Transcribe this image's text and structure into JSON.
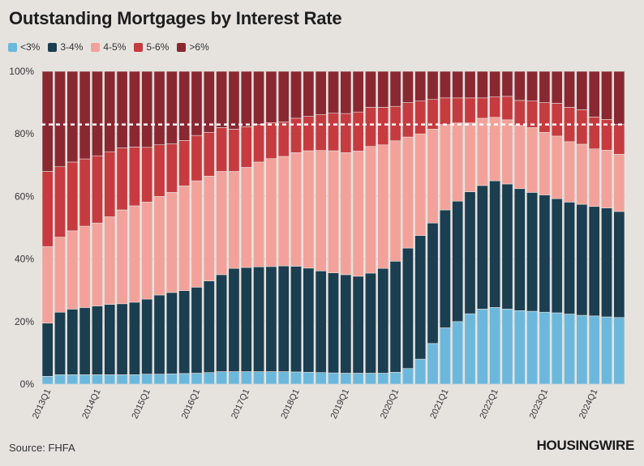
{
  "title": "Outstanding Mortgages by Interest Rate",
  "source": "Source: FHFA",
  "brand": "HOUSINGWIRE",
  "chart_data": {
    "type": "bar",
    "stacked": true,
    "normalized": true,
    "title": "Outstanding Mortgages by Interest Rate",
    "ylim": [
      0,
      100
    ],
    "yticks": [
      "0%",
      "20%",
      "40%",
      "60%",
      "80%",
      "100%"
    ],
    "reference_line": 83,
    "categories": [
      "2013Q1",
      "2013Q2",
      "2013Q3",
      "2013Q4",
      "2014Q1",
      "2014Q2",
      "2014Q3",
      "2014Q4",
      "2015Q1",
      "2015Q2",
      "2015Q3",
      "2015Q4",
      "2016Q1",
      "2016Q2",
      "2016Q3",
      "2016Q4",
      "2017Q1",
      "2017Q2",
      "2017Q3",
      "2017Q4",
      "2018Q1",
      "2018Q2",
      "2018Q3",
      "2018Q4",
      "2019Q1",
      "2019Q2",
      "2019Q3",
      "2019Q4",
      "2020Q1",
      "2020Q2",
      "2020Q3",
      "2020Q4",
      "2021Q1",
      "2021Q2",
      "2021Q3",
      "2021Q4",
      "2022Q1",
      "2022Q2",
      "2022Q3",
      "2022Q4",
      "2023Q1",
      "2023Q2",
      "2023Q3",
      "2023Q4",
      "2024Q1",
      "2024Q2",
      "2024Q3"
    ],
    "x_tick_labels": [
      "2013Q1",
      "2014Q1",
      "2015Q1",
      "2016Q1",
      "2017Q1",
      "2018Q1",
      "2019Q1",
      "2020Q1",
      "2021Q1",
      "2022Q1",
      "2023Q1",
      "2024Q1"
    ],
    "series": [
      {
        "name": "<3%",
        "color": "#6cb8dc",
        "values": [
          2.5,
          3,
          3,
          3,
          3,
          3,
          3,
          3,
          3.2,
          3.2,
          3.3,
          3.4,
          3.5,
          3.7,
          4,
          4,
          4,
          4,
          4,
          4,
          3.9,
          3.8,
          3.7,
          3.6,
          3.5,
          3.5,
          3.5,
          3.5,
          3.8,
          5,
          8,
          13,
          18,
          20,
          22.5,
          24,
          24.5,
          24,
          23.5,
          23.3,
          23,
          22.8,
          22.4,
          22,
          21.8,
          21.5,
          21.3
        ]
      },
      {
        "name": "3-4%",
        "color": "#1b3e50",
        "values": [
          17,
          20,
          21,
          21.5,
          22,
          22.5,
          22.7,
          23.2,
          24,
          25.3,
          26,
          26.5,
          27.5,
          29.3,
          31,
          33,
          33.3,
          33.5,
          33.6,
          33.8,
          33.8,
          33.3,
          32.5,
          32,
          31.5,
          31,
          32,
          33.5,
          35.5,
          38.5,
          39.5,
          38.5,
          37.7,
          38.5,
          39,
          39.5,
          40.5,
          40,
          39,
          38,
          37.5,
          36.5,
          35.8,
          35.5,
          35,
          34.8,
          33.9
        ]
      },
      {
        "name": "4-5%",
        "color": "#f2a29a",
        "values": [
          24.5,
          24,
          25,
          26,
          26.5,
          28,
          30,
          30.8,
          31,
          31.5,
          32,
          33.5,
          34,
          33.5,
          33,
          31,
          32,
          33.5,
          34.5,
          35,
          36.3,
          37.5,
          38.5,
          39,
          39,
          40,
          40.5,
          39.5,
          38.5,
          35.5,
          32.5,
          30,
          27.3,
          25,
          22,
          21.5,
          20.3,
          20.5,
          20.2,
          20.7,
          20,
          20,
          19.3,
          19.2,
          18.4,
          18.5,
          18.3
        ]
      },
      {
        "name": "5-6%",
        "color": "#c63b3f",
        "values": [
          24,
          22.5,
          22,
          21.5,
          21.5,
          20.8,
          19.8,
          18.8,
          17.5,
          16.5,
          15.5,
          14.5,
          14.5,
          14,
          14,
          13.5,
          13,
          12,
          11.5,
          11,
          11,
          11,
          11.5,
          12,
          12.5,
          12.5,
          12.5,
          12,
          11,
          11,
          10.5,
          9.5,
          8.5,
          8,
          8,
          6.5,
          6.5,
          7.5,
          8,
          8.5,
          9.5,
          10.5,
          11,
          11,
          10.2,
          9.8,
          9.5
        ]
      },
      {
        "name": ">6%",
        "color": "#8a2832",
        "values": [
          32,
          30.5,
          29,
          28,
          27,
          25.7,
          24.5,
          24.2,
          24.3,
          23.5,
          23.2,
          22.1,
          20.5,
          19.5,
          18,
          18.5,
          17.7,
          17,
          16.4,
          16.2,
          15,
          14.4,
          13.8,
          13.4,
          13.5,
          13,
          11.5,
          11.5,
          11.2,
          10,
          9.5,
          9,
          8.5,
          8.5,
          8.5,
          8.5,
          8.2,
          8,
          9.3,
          9.5,
          10,
          10.2,
          11.5,
          12.3,
          14.6,
          15.4,
          17
        ]
      }
    ]
  }
}
